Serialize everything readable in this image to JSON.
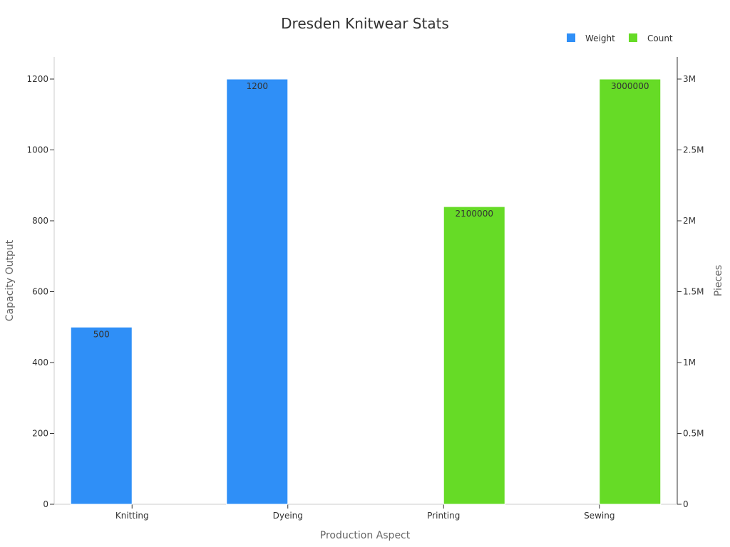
{
  "chart_data": {
    "type": "bar",
    "title": "Dresden Knitwear Stats",
    "xlabel": "Production Aspect",
    "ylabel_left": "Capacity Output",
    "ylabel_right": "Pieces",
    "categories": [
      "Knitting",
      "Dyeing",
      "Printing",
      "Sewing"
    ],
    "series": [
      {
        "name": "Weight",
        "axis": "left",
        "color": "#2f8ff7",
        "values": [
          500,
          1200,
          null,
          null
        ],
        "labels": [
          "500",
          "1200",
          "",
          ""
        ]
      },
      {
        "name": "Count",
        "axis": "right",
        "color": "#66db26",
        "values": [
          null,
          null,
          2100000,
          3000000
        ],
        "labels": [
          "",
          "",
          "2100000",
          "3000000"
        ]
      }
    ],
    "y_left": {
      "range": [
        0,
        1200
      ],
      "ticks": [
        0,
        200,
        400,
        600,
        800,
        1000,
        1200
      ],
      "tick_labels": [
        "0",
        "200",
        "400",
        "600",
        "800",
        "1000",
        "1200"
      ]
    },
    "y_right": {
      "range": [
        0,
        3000000
      ],
      "ticks": [
        0,
        500000,
        1000000,
        1500000,
        2000000,
        2500000,
        3000000
      ],
      "tick_labels": [
        "0",
        "0.5M",
        "1M",
        "1.5M",
        "2M",
        "2.5M",
        "3M"
      ]
    },
    "legend_position": "top-right",
    "grid": false
  }
}
